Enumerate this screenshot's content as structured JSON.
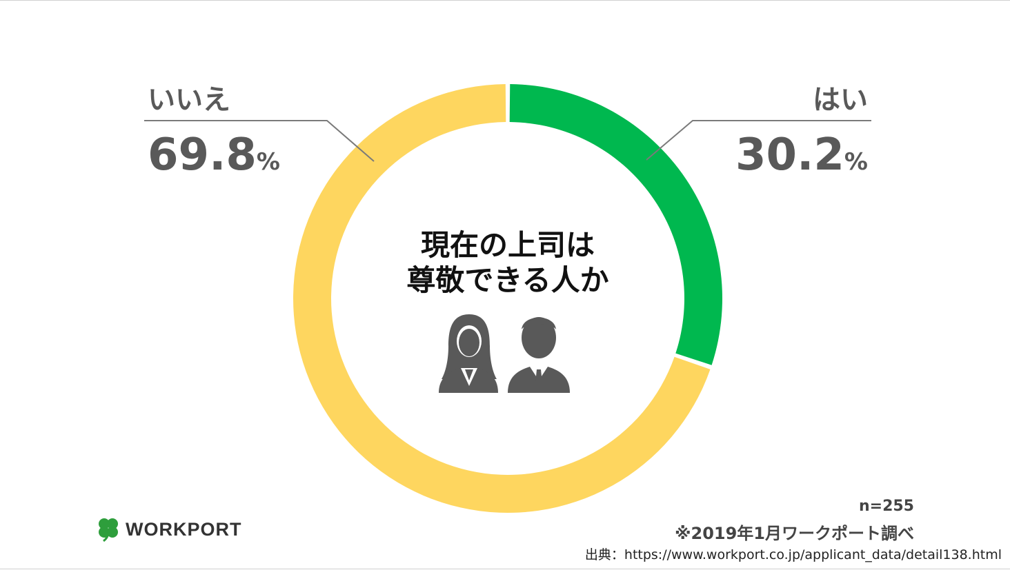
{
  "chart_data": {
    "type": "pie",
    "title": "現在の上司は\n尊敬できる人か",
    "title_lines": [
      "現在の上司は",
      "尊敬できる人か"
    ],
    "slices": [
      {
        "label": "はい",
        "value": 30.2,
        "display": "30.2",
        "unit": "%",
        "color": "#00b84f"
      },
      {
        "label": "いいえ",
        "value": 69.8,
        "display": "69.8",
        "unit": "%",
        "color": "#fed65f"
      }
    ]
  },
  "footer": {
    "sample": "n=255",
    "survey": "※2019年1月ワークポート調べ",
    "source": "出典：https://www.workport.co.jp/applicant_data/detail138.html"
  },
  "logo": {
    "text": "WORKPORT",
    "icon": "clover-icon",
    "icon_color": "#2e9e3c"
  },
  "icons": [
    "woman-avatar-icon",
    "man-avatar-icon"
  ],
  "colors": {
    "label": "#595959",
    "icon": "#595959"
  }
}
